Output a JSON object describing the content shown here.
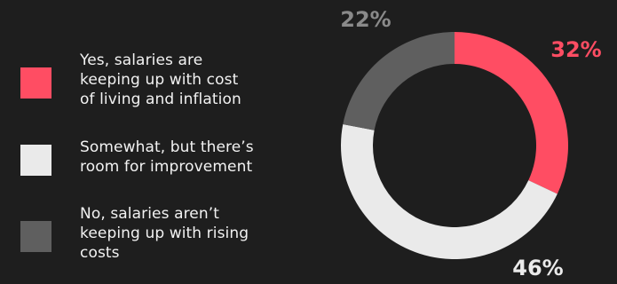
{
  "chart_data": {
    "type": "pie",
    "variant": "donut",
    "categories": [
      "Yes, salaries are keeping up with cost of living and inflation",
      "Somewhat, but there’s room for improvement",
      "No, salaries aren’t keeping up with rising costs"
    ],
    "values": [
      32,
      46,
      22
    ],
    "value_labels": [
      "32%",
      "46%",
      "22%"
    ],
    "colors": [
      "#ff4d63",
      "#eaeaea",
      "#5f5f5f"
    ],
    "label_colors": [
      "#ff4d63",
      "#eaeaea",
      "#8a8a8a"
    ],
    "legend_placement": "left",
    "start": "top, clockwise"
  },
  "legend": {
    "items": [
      {
        "lines": [
          "Yes, salaries are",
          "keeping up with cost",
          "of living and inflation"
        ]
      },
      {
        "lines": [
          "Somewhat, but there’s",
          "room for improvement"
        ]
      },
      {
        "lines": [
          "No, salaries aren’t",
          "keeping up with rising",
          "costs"
        ]
      }
    ]
  },
  "background": "#1e1e1e"
}
